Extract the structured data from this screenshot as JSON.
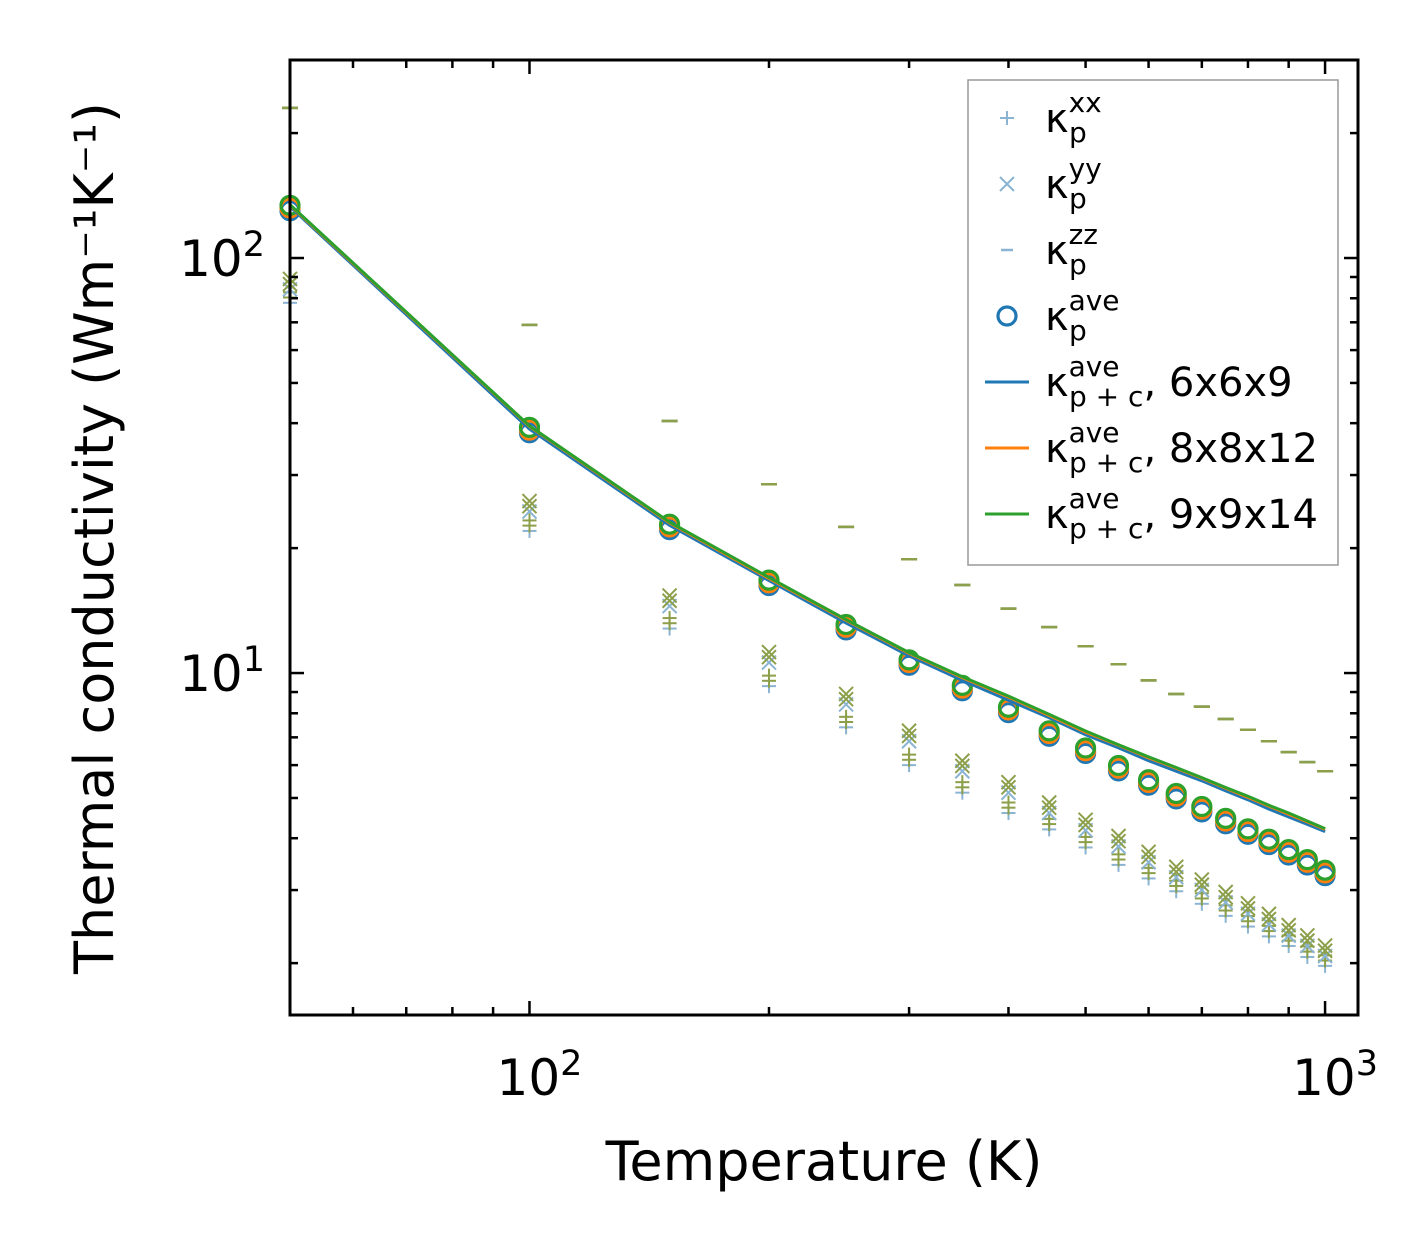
{
  "chart_data": {
    "type": "scatter",
    "xscale": "log",
    "yscale": "log",
    "xlabel": "Temperature (K)",
    "ylabel": "Thermal conductivity (Wm⁻¹K⁻¹)",
    "xlim": [
      50,
      1100
    ],
    "ylim": [
      1.5,
      300
    ],
    "x_ticks": [
      {
        "value": 100,
        "base": "10",
        "exp": "2"
      },
      {
        "value": 1000,
        "base": "10",
        "exp": "3"
      }
    ],
    "y_ticks": [
      {
        "value": 10,
        "base": "10",
        "exp": "1"
      },
      {
        "value": 100,
        "base": "10",
        "exp": "2"
      }
    ],
    "legend_position": "top-right",
    "legend": [
      {
        "symbol": "κ",
        "sub": "p",
        "sup": "xx",
        "suffix": ""
      },
      {
        "symbol": "κ",
        "sub": "p",
        "sup": "yy",
        "suffix": ""
      },
      {
        "symbol": "κ",
        "sub": "p",
        "sup": "zz",
        "suffix": ""
      },
      {
        "symbol": "κ",
        "sub": "p",
        "sup": "ave",
        "suffix": ""
      },
      {
        "symbol": "κ",
        "sub": "p + c",
        "sup": "ave",
        "suffix": ", 6x6x9"
      },
      {
        "symbol": "κ",
        "sub": "p + c",
        "sup": "ave",
        "suffix": ", 8x8x12"
      },
      {
        "symbol": "κ",
        "sub": "p + c",
        "sup": "ave",
        "suffix": ", 9x9x14"
      }
    ],
    "colors": {
      "blue": "#1f77b4",
      "orange": "#ff7f0e",
      "green": "#2ca02c",
      "light_blue": "#8ab4d2",
      "olive": "#8c9f4a"
    },
    "x": [
      50,
      100,
      150,
      200,
      250,
      300,
      350,
      400,
      450,
      500,
      550,
      600,
      650,
      700,
      750,
      800,
      850,
      900,
      950,
      1000
    ],
    "series": [
      {
        "name": "kappa_p_xx",
        "marker": "plus",
        "values": [
          78,
          22,
          12.8,
          9.3,
          7.4,
          6.0,
          5.15,
          4.6,
          4.2,
          3.8,
          3.45,
          3.2,
          2.98,
          2.78,
          2.6,
          2.45,
          2.32,
          2.2,
          2.07,
          1.97
        ]
      },
      {
        "name": "kappa_p_yy",
        "marker": "x",
        "values": [
          84,
          24.5,
          14.5,
          10.6,
          8.4,
          6.85,
          5.8,
          5.15,
          4.6,
          4.18,
          3.82,
          3.5,
          3.22,
          3.0,
          2.8,
          2.63,
          2.48,
          2.33,
          2.2,
          2.08
        ]
      },
      {
        "name": "kappa_p_zz",
        "marker": "dash",
        "values": [
          230,
          69,
          40.5,
          28.5,
          22.5,
          18.8,
          16.3,
          14.3,
          12.9,
          11.6,
          10.5,
          9.6,
          8.9,
          8.3,
          7.75,
          7.3,
          6.85,
          6.45,
          6.1,
          5.8
        ]
      },
      {
        "name": "kappa_p_ave",
        "marker": "circle",
        "values": [
          132,
          38.5,
          22.5,
          16.5,
          12.9,
          10.6,
          9.2,
          8.15,
          7.15,
          6.5,
          5.9,
          5.45,
          5.05,
          4.7,
          4.4,
          4.15,
          3.92,
          3.7,
          3.5,
          3.3
        ]
      },
      {
        "name": "kappa_pc_ave_6x6x9",
        "marker": "line",
        "values": [
          133,
          38.7,
          22.7,
          16.7,
          13.2,
          11.0,
          9.6,
          8.6,
          7.8,
          7.1,
          6.6,
          6.15,
          5.8,
          5.5,
          5.2,
          4.95,
          4.7,
          4.5,
          4.32,
          4.15
        ]
      },
      {
        "name": "kappa_pc_ave_8x8x12",
        "marker": "line",
        "values": [
          134,
          39.3,
          23.0,
          16.9,
          13.4,
          11.15,
          9.75,
          8.75,
          7.9,
          7.2,
          6.7,
          6.25,
          5.9,
          5.58,
          5.28,
          5.02,
          4.78,
          4.57,
          4.38,
          4.2
        ]
      },
      {
        "name": "kappa_pc_ave_9x9x14",
        "marker": "line",
        "values": [
          134.5,
          39.4,
          23.1,
          17.0,
          13.45,
          11.2,
          9.8,
          8.8,
          7.95,
          7.25,
          6.72,
          6.28,
          5.92,
          5.6,
          5.3,
          5.05,
          4.8,
          4.6,
          4.4,
          4.22
        ]
      }
    ]
  }
}
